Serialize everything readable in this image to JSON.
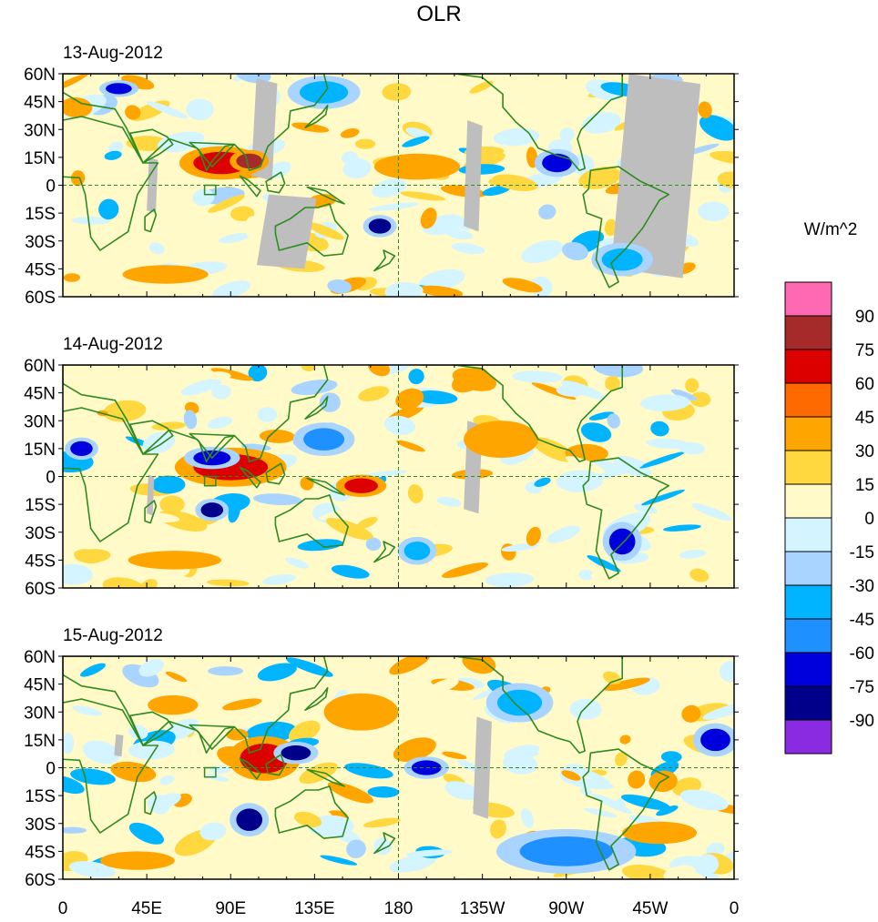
{
  "title": "OLR",
  "colorbar": {
    "units": "W/m^2",
    "levels": [
      90,
      75,
      60,
      45,
      30,
      15,
      0,
      -15,
      -30,
      -45,
      -60,
      -75,
      -90
    ],
    "colors_top_to_bottom": [
      "#ff69b4",
      "#a52a2a",
      "#dd0000",
      "#ff6a00",
      "#ffa500",
      "#ffd840",
      "#fffac8",
      "#d4f4ff",
      "#a8d4ff",
      "#00b4ff",
      "#1e90ff",
      "#0000dd",
      "#00008b",
      "#8a2be2"
    ]
  },
  "colors": {
    "coast": "#2e8b22",
    "missing": "#bebebe",
    "frame": "#000000"
  },
  "chart_data": {
    "type": "heatmap",
    "variable": "OLR anomaly",
    "units": "W/m^2",
    "xlabel": "",
    "ylabel": "",
    "x_ticks": [
      "0",
      "45E",
      "90E",
      "135E",
      "180",
      "135W",
      "90W",
      "45W",
      "0"
    ],
    "x_range": [
      0,
      360
    ],
    "y_ticks": [
      "60N",
      "45N",
      "30N",
      "15N",
      "0",
      "15S",
      "30S",
      "45S",
      "60S"
    ],
    "y_range": [
      -60,
      60
    ],
    "panels": [
      {
        "date": "13-Aug-2012",
        "features": [
          {
            "lon": 120,
            "lat": -25,
            "w": 32,
            "h": 40,
            "value": "missing"
          },
          {
            "lon": 108,
            "lat": 30,
            "w": 14,
            "h": 55,
            "value": "missing"
          },
          {
            "lon": 318,
            "lat": 5,
            "w": 48,
            "h": 110,
            "value": "missing"
          },
          {
            "lon": 220,
            "lat": 5,
            "w": 10,
            "h": 60,
            "value": "missing"
          },
          {
            "lon": 48,
            "lat": 0,
            "w": 6,
            "h": 30,
            "value": "missing"
          },
          {
            "lon": 85,
            "lat": 12,
            "w": 30,
            "h": 12,
            "value": 70
          },
          {
            "lon": 100,
            "lat": 13,
            "w": 14,
            "h": 8,
            "value": 85
          },
          {
            "lon": 170,
            "lat": -22,
            "w": 12,
            "h": 8,
            "value": -90
          },
          {
            "lon": 30,
            "lat": 52,
            "w": 14,
            "h": 6,
            "value": -75
          },
          {
            "lon": 265,
            "lat": 12,
            "w": 16,
            "h": 10,
            "value": -75
          },
          {
            "lon": 190,
            "lat": 10,
            "w": 46,
            "h": 14,
            "value": 30
          },
          {
            "lon": 55,
            "lat": -48,
            "w": 46,
            "h": 10,
            "value": 30
          },
          {
            "lon": 300,
            "lat": -40,
            "w": 22,
            "h": 12,
            "value": -45
          },
          {
            "lon": 140,
            "lat": 50,
            "w": 26,
            "h": 12,
            "value": -45
          }
        ]
      },
      {
        "date": "14-Aug-2012",
        "features": [
          {
            "lon": 220,
            "lat": 5,
            "w": 10,
            "h": 50,
            "value": "missing"
          },
          {
            "lon": 47,
            "lat": -10,
            "w": 4,
            "h": 22,
            "value": "missing"
          },
          {
            "lon": 90,
            "lat": 5,
            "w": 40,
            "h": 14,
            "value": 60
          },
          {
            "lon": 80,
            "lat": 10,
            "w": 20,
            "h": 8,
            "value": -75
          },
          {
            "lon": 160,
            "lat": -5,
            "w": 18,
            "h": 8,
            "value": 60
          },
          {
            "lon": 10,
            "lat": 15,
            "w": 12,
            "h": 8,
            "value": -75
          },
          {
            "lon": 80,
            "lat": -18,
            "w": 12,
            "h": 8,
            "value": -90
          },
          {
            "lon": 300,
            "lat": -35,
            "w": 14,
            "h": 14,
            "value": -75
          },
          {
            "lon": 140,
            "lat": 20,
            "w": 22,
            "h": 12,
            "value": -60
          },
          {
            "lon": 235,
            "lat": 20,
            "w": 40,
            "h": 20,
            "value": 30
          },
          {
            "lon": 190,
            "lat": -40,
            "w": 14,
            "h": 10,
            "value": -45
          },
          {
            "lon": 60,
            "lat": -45,
            "w": 50,
            "h": 10,
            "value": 30
          }
        ]
      },
      {
        "date": "15-Aug-2012",
        "features": [
          {
            "lon": 225,
            "lat": 0,
            "w": 10,
            "h": 55,
            "value": "missing"
          },
          {
            "lon": 30,
            "lat": 12,
            "w": 5,
            "h": 12,
            "value": "missing"
          },
          {
            "lon": 108,
            "lat": 5,
            "w": 26,
            "h": 16,
            "value": 60
          },
          {
            "lon": 125,
            "lat": 8,
            "w": 16,
            "h": 8,
            "value": -90
          },
          {
            "lon": 350,
            "lat": 15,
            "w": 16,
            "h": 12,
            "value": -75
          },
          {
            "lon": 100,
            "lat": -28,
            "w": 14,
            "h": 12,
            "value": -90
          },
          {
            "lon": 195,
            "lat": 0,
            "w": 16,
            "h": 8,
            "value": -75
          },
          {
            "lon": 270,
            "lat": -45,
            "w": 50,
            "h": 16,
            "value": -60
          },
          {
            "lon": 160,
            "lat": 30,
            "w": 40,
            "h": 20,
            "value": 30
          },
          {
            "lon": 320,
            "lat": -35,
            "w": 40,
            "h": 12,
            "value": 30
          },
          {
            "lon": 40,
            "lat": -50,
            "w": 40,
            "h": 10,
            "value": 30
          },
          {
            "lon": 245,
            "lat": 35,
            "w": 24,
            "h": 14,
            "value": -45
          }
        ]
      }
    ]
  }
}
